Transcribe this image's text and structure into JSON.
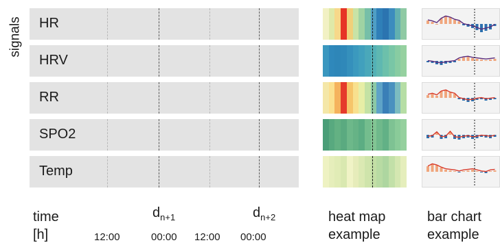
{
  "y_axis_label": "signals",
  "signals": [
    {
      "label": "HR",
      "heatmap": [
        "#f2f1c4",
        "#dfe9a8",
        "#f7d88a",
        "#e63426",
        "#f0d07a",
        "#c8e3a6",
        "#9fd3a3",
        "#76bfa8",
        "#4f9fc6",
        "#2f7fb8",
        "#2b74b0",
        "#3c8cbe",
        "#62b0b0",
        "#8fcaa4"
      ]
    },
    {
      "label": "HRV",
      "heatmap": [
        "#3a97bf",
        "#2f88bb",
        "#2e86b8",
        "#2f88b9",
        "#3590bc",
        "#3b99be",
        "#41a0bd",
        "#4aa8ba",
        "#54b1b6",
        "#5fb8b1",
        "#6cc0ab",
        "#79c6a6",
        "#88cca2",
        "#96d1a0"
      ]
    },
    {
      "label": "RR",
      "heatmap": [
        "#f4e7a8",
        "#fbe08f",
        "#f5b25d",
        "#e53a2b",
        "#f6c56a",
        "#f8e08e",
        "#e7eea6",
        "#c4e2a4",
        "#8cc9a6",
        "#5ea3c7",
        "#3a7fb7",
        "#4a91bf",
        "#7cbcc0",
        "#b6dea5"
      ]
    },
    {
      "label": "SPO2",
      "heatmap": [
        "#4a9e78",
        "#58a97f",
        "#63b183",
        "#5aaa80",
        "#6db88a",
        "#66b386",
        "#5cad83",
        "#74bd8e",
        "#82c594",
        "#6fb98b",
        "#62b186",
        "#7ec293",
        "#8acb99",
        "#95d09e"
      ]
    },
    {
      "label": "Temp",
      "heatmap": [
        "#eef2c2",
        "#e6eebb",
        "#e1ecb6",
        "#d9e8b0",
        "#f0f3c6",
        "#e6ecba",
        "#dbe9b3",
        "#cfe4ab",
        "#c3dfa6",
        "#b8dba3",
        "#aed6a0",
        "#c2e0a8",
        "#d4e7b1",
        "#e5eebc"
      ]
    }
  ],
  "bar_chart_style": {
    "positive": "#f0a67d",
    "negative": "#2c6fae",
    "line_red": "#d83a2a",
    "line_purple": "#5a2a7a"
  },
  "bottom": {
    "time_label": "time",
    "unit_label": "[h]",
    "ticks": [
      "12:00",
      "00:00",
      "12:00",
      "00:00"
    ],
    "d1_main": "d",
    "d1_sub": "n+1",
    "d2_main": "d",
    "d2_sub": "n+2",
    "heatmap_caption_1": "heat map",
    "heatmap_caption_2": "example",
    "barchart_caption_1": "bar chart",
    "barchart_caption_2": "example"
  }
}
